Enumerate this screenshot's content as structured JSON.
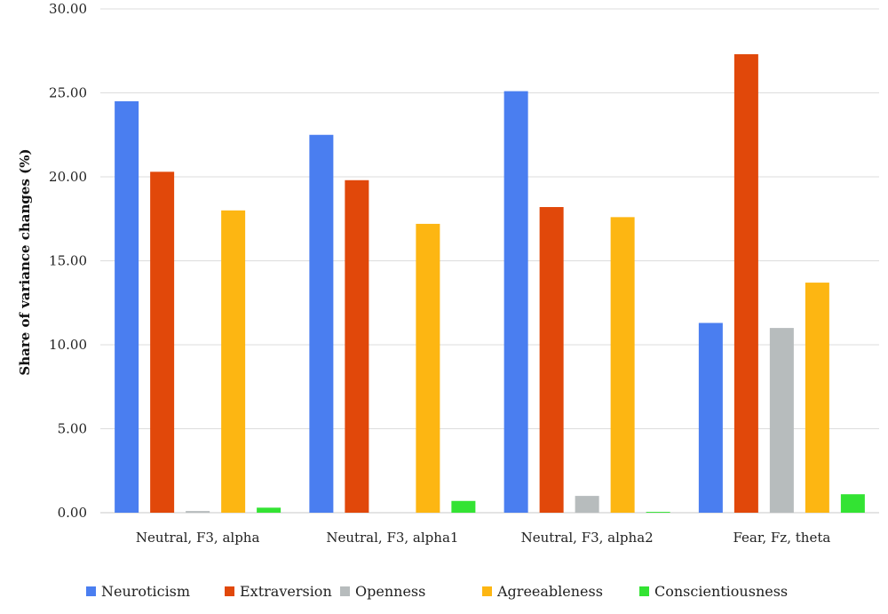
{
  "chart_data": {
    "type": "bar",
    "ylabel": "Share of variance changes (%)",
    "ylim": [
      0,
      30
    ],
    "yticks": [
      "0.00",
      "5.00",
      "10.00",
      "15.00",
      "20.00",
      "25.00",
      "30.00"
    ],
    "grid": true,
    "legend_position": "bottom",
    "categories": [
      "Neutral, F3, alpha",
      "Neutral, F3, alpha1",
      "Neutral, F3, alpha2",
      "Fear, Fz, theta"
    ],
    "series": [
      {
        "name": "Neuroticism",
        "color": "#4a7ef0",
        "values": [
          24.5,
          22.5,
          25.1,
          11.3
        ]
      },
      {
        "name": "Extraversion",
        "color": "#e1480a",
        "values": [
          20.3,
          19.8,
          18.2,
          27.3
        ]
      },
      {
        "name": "Openness",
        "color": "#b7bcbd",
        "values": [
          0.1,
          0.0,
          1.0,
          11.0
        ]
      },
      {
        "name": "Agreeableness",
        "color": "#fdb612",
        "values": [
          18.0,
          17.2,
          17.6,
          13.7
        ]
      },
      {
        "name": "Conscientiousness",
        "color": "#33e333",
        "values": [
          0.3,
          0.7,
          0.05,
          1.1
        ]
      }
    ]
  }
}
